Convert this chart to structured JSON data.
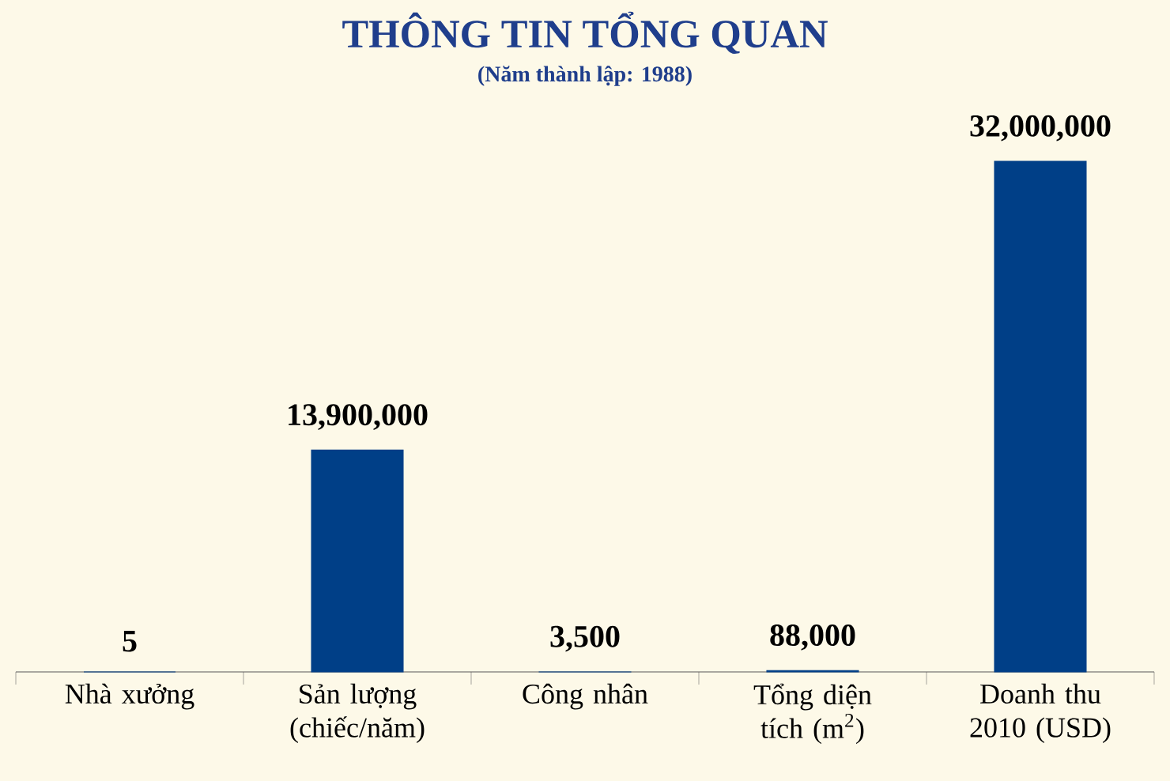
{
  "chart_data": {
    "type": "bar",
    "title": "THÔNG TIN TỔNG QUAN",
    "subtitle": "(Năm thành lập: 1988)",
    "categories": [
      "Nhà xưởng",
      "Sản lượng (chiếc/năm)",
      "Công nhân",
      "Tổng diện tích (m$^{2}$)",
      "Doanh thu 2010 (USD)"
    ],
    "values": [
      5,
      13900000,
      3500,
      88000,
      32000000
    ],
    "color": "#003f87",
    "value_labels": [
      "5",
      "13,900,000",
      "3,500",
      "88,000",
      "32,000,000"
    ]
  }
}
